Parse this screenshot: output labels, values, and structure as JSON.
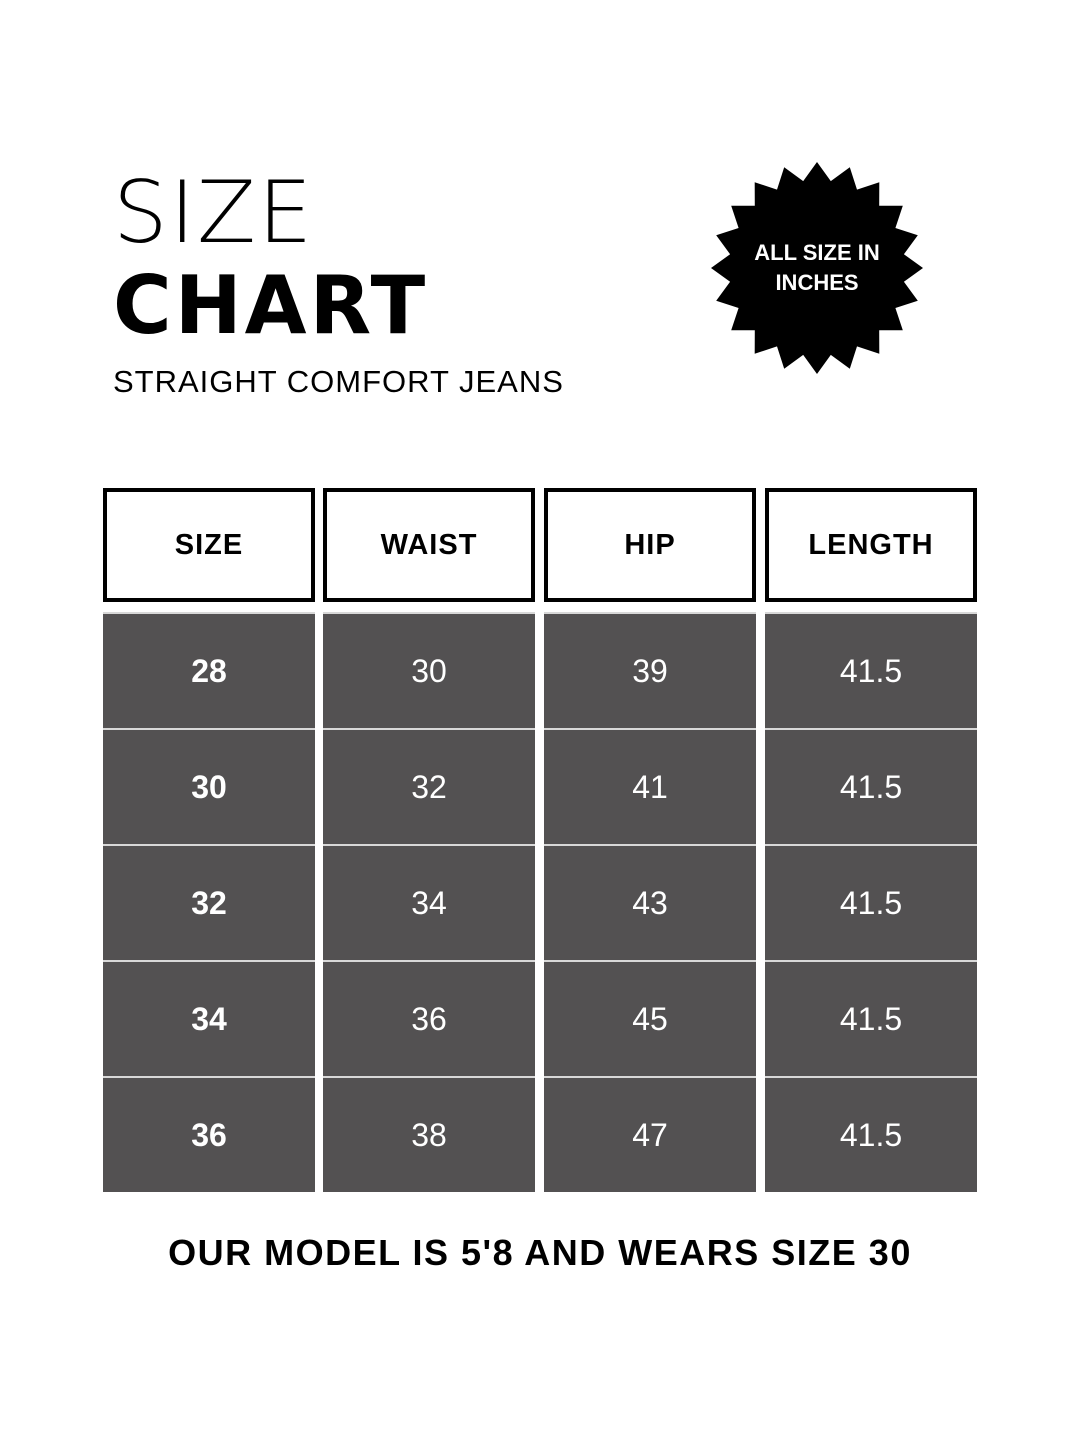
{
  "title": {
    "line1": "SIZE",
    "line2": "CHART",
    "subtitle": "STRAIGHT COMFORT JEANS"
  },
  "badge": {
    "line1": "ALL SIZE IN",
    "line2": "INCHES",
    "color": "#000000",
    "icon": "starburst-badge"
  },
  "table": {
    "headers": [
      "SIZE",
      "WAIST",
      "HIP",
      "LENGTH"
    ],
    "rows": [
      [
        "28",
        "30",
        "39",
        "41.5"
      ],
      [
        "30",
        "32",
        "41",
        "41.5"
      ],
      [
        "32",
        "34",
        "43",
        "41.5"
      ],
      [
        "34",
        "36",
        "45",
        "41.5"
      ],
      [
        "36",
        "38",
        "47",
        "41.5"
      ]
    ],
    "cell_color": "#535152"
  },
  "footer": "OUR MODEL IS 5'8 AND WEARS SIZE 30"
}
